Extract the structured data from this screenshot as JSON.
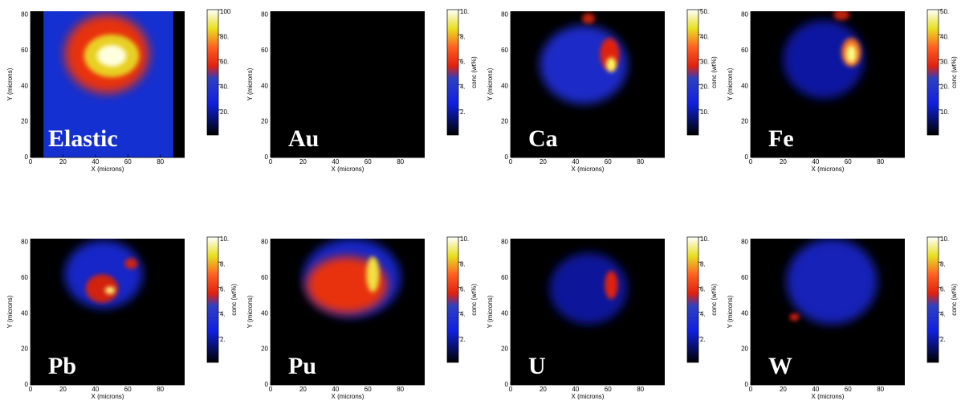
{
  "chart_data": [
    {
      "type": "heatmap",
      "title": "Elastic",
      "xlabel": "X (microns)",
      "ylabel": "Y (microns)",
      "xlim": [
        0,
        95
      ],
      "ylim": [
        0,
        82
      ],
      "xticks": [
        0,
        20,
        40,
        60,
        80
      ],
      "yticks": [
        0,
        20,
        40,
        60,
        80
      ],
      "clim": [
        0,
        100
      ],
      "cticks": [
        {
          "value": 20,
          "label": "20."
        },
        {
          "value": 40,
          "label": "40."
        },
        {
          "value": 60,
          "label": "60."
        },
        {
          "value": 80,
          "label": "80."
        },
        100
      ]
    },
    {
      "type": "heatmap",
      "title": "Au",
      "xlabel": "X (microns)",
      "ylabel": "Y (microns)",
      "clabel": "conc (wt%)",
      "xlim": [
        0,
        95
      ],
      "ylim": [
        0,
        82
      ],
      "xticks": [
        0,
        20,
        40,
        60,
        80
      ],
      "yticks": [
        0,
        20,
        40,
        60,
        80
      ],
      "clim": [
        0,
        10
      ],
      "cticks": [
        {
          "value": 2,
          "label": "2."
        },
        {
          "value": 4,
          "label": "4."
        },
        {
          "value": 6,
          "label": "6."
        },
        {
          "value": 8,
          "label": "8."
        },
        {
          "value": 10,
          "label": "10."
        }
      ]
    },
    {
      "type": "heatmap",
      "title": "Ca",
      "xlabel": "X (microns)",
      "ylabel": "Y (microns)",
      "clabel": "conc (wt%)",
      "xlim": [
        0,
        95
      ],
      "ylim": [
        0,
        82
      ],
      "xticks": [
        0,
        20,
        40,
        60,
        80
      ],
      "yticks": [
        0,
        20,
        40,
        60,
        80
      ],
      "clim": [
        0,
        50
      ],
      "cticks": [
        {
          "value": 10,
          "label": "10."
        },
        {
          "value": 20,
          "label": "20."
        },
        {
          "value": 30,
          "label": "30."
        },
        {
          "value": 40,
          "label": "40."
        },
        {
          "value": 50,
          "label": "50."
        }
      ]
    },
    {
      "type": "heatmap",
      "title": "Fe",
      "xlabel": "X (microns)",
      "ylabel": "Y (microns)",
      "clabel": "conc (wt%)",
      "xlim": [
        0,
        95
      ],
      "ylim": [
        0,
        82
      ],
      "xticks": [
        0,
        20,
        40,
        60,
        80
      ],
      "yticks": [
        0,
        20,
        40,
        60,
        80
      ],
      "clim": [
        0,
        50
      ],
      "cticks": [
        {
          "value": 10,
          "label": "10."
        },
        {
          "value": 20,
          "label": "20."
        },
        {
          "value": 30,
          "label": "30."
        },
        {
          "value": 40,
          "label": "40."
        },
        {
          "value": 50,
          "label": "50."
        }
      ]
    },
    {
      "type": "heatmap",
      "title": "Pb",
      "xlabel": "X (microns)",
      "ylabel": "Y (microns)",
      "clabel": "conc (wt%)",
      "xlim": [
        0,
        95
      ],
      "ylim": [
        0,
        82
      ],
      "xticks": [
        0,
        20,
        40,
        60,
        80
      ],
      "yticks": [
        0,
        20,
        40,
        60,
        80
      ],
      "clim": [
        0,
        10
      ],
      "cticks": [
        {
          "value": 2,
          "label": "2."
        },
        {
          "value": 4,
          "label": "4."
        },
        {
          "value": 6,
          "label": "6."
        },
        {
          "value": 8,
          "label": "8."
        },
        {
          "value": 10,
          "label": "10."
        }
      ]
    },
    {
      "type": "heatmap",
      "title": "Pu",
      "xlabel": "X (microns)",
      "ylabel": "Y (microns)",
      "clabel": "conc (wt%)",
      "xlim": [
        0,
        95
      ],
      "ylim": [
        0,
        82
      ],
      "xticks": [
        0,
        20,
        40,
        60,
        80
      ],
      "yticks": [
        0,
        20,
        40,
        60,
        80
      ],
      "clim": [
        0,
        10
      ],
      "cticks": [
        {
          "value": 2,
          "label": "2."
        },
        {
          "value": 4,
          "label": "4."
        },
        {
          "value": 6,
          "label": "6."
        },
        {
          "value": 8,
          "label": "8."
        },
        {
          "value": 10,
          "label": "10."
        }
      ]
    },
    {
      "type": "heatmap",
      "title": "U",
      "xlabel": "X (microns)",
      "ylabel": "Y (microns)",
      "clabel": "conc (wt%)",
      "xlim": [
        0,
        95
      ],
      "ylim": [
        0,
        82
      ],
      "xticks": [
        0,
        20,
        40,
        60,
        80
      ],
      "yticks": [
        0,
        20,
        40,
        60,
        80
      ],
      "clim": [
        0,
        10
      ],
      "cticks": [
        {
          "value": 2,
          "label": "2."
        },
        {
          "value": 4,
          "label": "4."
        },
        {
          "value": 6,
          "label": "6."
        },
        {
          "value": 8,
          "label": "8."
        },
        {
          "value": 10,
          "label": "10."
        }
      ]
    },
    {
      "type": "heatmap",
      "title": "W",
      "xlabel": "X (microns)",
      "ylabel": "Y (microns)",
      "clabel": "conc (wt%)",
      "xlim": [
        0,
        95
      ],
      "ylim": [
        0,
        82
      ],
      "xticks": [
        0,
        20,
        40,
        60,
        80
      ],
      "yticks": [
        0,
        20,
        40,
        60,
        80
      ],
      "clim": [
        0,
        10
      ],
      "cticks": [
        {
          "value": 2,
          "label": "2."
        },
        {
          "value": 4,
          "label": "4."
        },
        {
          "value": 6,
          "label": "6."
        },
        {
          "value": 8,
          "label": "8."
        },
        {
          "value": 10,
          "label": "10."
        }
      ]
    }
  ]
}
